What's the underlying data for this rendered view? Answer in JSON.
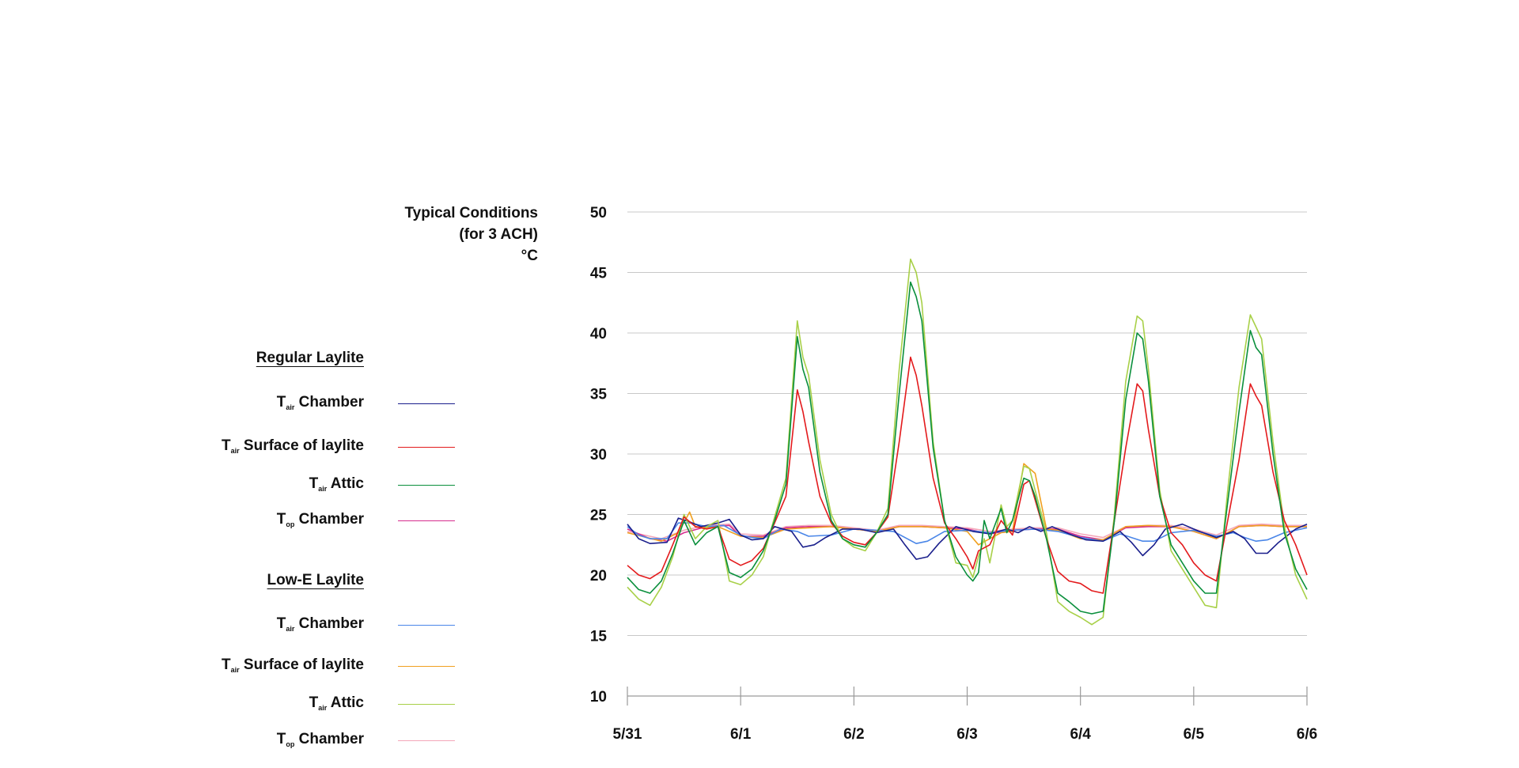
{
  "chart_data": {
    "type": "line",
    "title": "Typical Conditions",
    "subtitle": "(for 3 ACH)",
    "ylabel": "°C",
    "ylim": [
      10,
      50
    ],
    "yticks": [
      10,
      15,
      20,
      25,
      30,
      35,
      40,
      45,
      50
    ],
    "xlim": [
      0,
      6
    ],
    "xticks": [
      {
        "label": "5/31",
        "value": 0
      },
      {
        "label": "6/1",
        "value": 1
      },
      {
        "label": "6/2",
        "value": 2
      },
      {
        "label": "6/3",
        "value": 3
      },
      {
        "label": "6/4",
        "value": 4
      },
      {
        "label": "6/5",
        "value": 5
      },
      {
        "label": "6/6",
        "value": 6
      }
    ],
    "grid": true,
    "legend_placement": "left",
    "groups": [
      {
        "title": "Regular Laylite",
        "series": [
          {
            "name": "Tair Chamber",
            "main": "T",
            "sub": "air",
            "rest": " Chamber",
            "color": "#1a1f8c",
            "x": [
              0,
              0.1,
              0.2,
              0.35,
              0.45,
              0.55,
              0.65,
              0.8,
              0.9,
              1.0,
              1.1,
              1.2,
              1.3,
              1.45,
              1.55,
              1.65,
              1.75,
              1.9,
              2.05,
              2.2,
              2.35,
              2.45,
              2.55,
              2.65,
              2.75,
              2.9,
              3.05,
              3.2,
              3.35,
              3.45,
              3.55,
              3.65,
              3.75,
              3.9,
              4.05,
              4.2,
              4.35,
              4.45,
              4.55,
              4.65,
              4.75,
              4.9,
              5.05,
              5.2,
              5.35,
              5.45,
              5.55,
              5.65,
              5.75,
              5.9,
              6.0
            ],
            "y": [
              24.2,
              23.0,
              22.6,
              22.7,
              24.7,
              24.4,
              24.0,
              24.3,
              24.6,
              23.3,
              22.9,
              23.0,
              24.0,
              23.6,
              22.3,
              22.5,
              23.1,
              23.8,
              23.8,
              23.5,
              23.8,
              22.5,
              21.3,
              21.5,
              22.6,
              24.0,
              23.6,
              23.4,
              23.8,
              23.5,
              24.0,
              23.6,
              24.0,
              23.4,
              22.9,
              22.8,
              23.6,
              22.7,
              21.6,
              22.5,
              23.8,
              24.2,
              23.6,
              23.1,
              23.6,
              23.0,
              21.8,
              21.8,
              22.7,
              23.8,
              24.2
            ]
          },
          {
            "name": "Tair Surface of laylite",
            "main": "T",
            "sub": "air",
            "rest": " Surface of laylite",
            "color": "#e31a1c",
            "x": [
              0,
              0.1,
              0.2,
              0.3,
              0.4,
              0.5,
              0.6,
              0.7,
              0.8,
              0.9,
              1.0,
              1.1,
              1.2,
              1.3,
              1.4,
              1.5,
              1.55,
              1.6,
              1.7,
              1.8,
              1.9,
              2.0,
              2.1,
              2.2,
              2.3,
              2.4,
              2.5,
              2.55,
              2.6,
              2.7,
              2.8,
              2.9,
              3.0,
              3.05,
              3.1,
              3.2,
              3.3,
              3.4,
              3.5,
              3.55,
              3.6,
              3.7,
              3.8,
              3.9,
              4.0,
              4.1,
              4.2,
              4.3,
              4.4,
              4.5,
              4.55,
              4.6,
              4.7,
              4.8,
              4.9,
              5.0,
              5.1,
              5.2,
              5.3,
              5.4,
              5.5,
              5.55,
              5.6,
              5.7,
              5.8,
              5.9,
              6.0
            ],
            "y": [
              20.8,
              20.0,
              19.7,
              20.3,
              22.5,
              24.8,
              24.0,
              23.8,
              24.0,
              21.3,
              20.8,
              21.2,
              22.2,
              24.3,
              26.5,
              35.3,
              33.5,
              31.0,
              26.5,
              24.3,
              23.2,
              22.7,
              22.5,
              23.5,
              24.8,
              31.0,
              38.0,
              36.5,
              34.0,
              28.0,
              24.3,
              23.0,
              21.5,
              20.5,
              22.0,
              22.5,
              24.5,
              23.3,
              27.5,
              27.8,
              26.2,
              23.0,
              20.3,
              19.5,
              19.3,
              18.7,
              18.5,
              24.5,
              30.5,
              35.8,
              35.2,
              32.0,
              26.5,
              23.5,
              22.5,
              21.0,
              20.0,
              19.5,
              24.5,
              29.5,
              35.8,
              34.8,
              34.0,
              28.5,
              24.5,
              22.5,
              20.0
            ]
          },
          {
            "name": "Tair Attic",
            "main": "T",
            "sub": "air",
            "rest": " Attic",
            "color": "#0a8f3c",
            "x": [
              0,
              0.1,
              0.2,
              0.3,
              0.4,
              0.5,
              0.6,
              0.7,
              0.8,
              0.9,
              1.0,
              1.1,
              1.2,
              1.3,
              1.4,
              1.5,
              1.55,
              1.6,
              1.7,
              1.8,
              1.9,
              2.0,
              2.1,
              2.2,
              2.3,
              2.4,
              2.5,
              2.55,
              2.6,
              2.7,
              2.8,
              2.9,
              3.0,
              3.05,
              3.1,
              3.15,
              3.2,
              3.3,
              3.35,
              3.4,
              3.5,
              3.55,
              3.6,
              3.7,
              3.8,
              3.9,
              4.0,
              4.1,
              4.2,
              4.3,
              4.4,
              4.5,
              4.55,
              4.6,
              4.7,
              4.8,
              4.9,
              5.0,
              5.1,
              5.2,
              5.3,
              5.4,
              5.5,
              5.55,
              5.6,
              5.7,
              5.8,
              5.9,
              6.0
            ],
            "y": [
              19.8,
              18.8,
              18.5,
              19.5,
              21.8,
              24.5,
              22.5,
              23.5,
              24.0,
              20.2,
              19.8,
              20.5,
              22.0,
              24.5,
              27.5,
              39.7,
              37.0,
              35.5,
              28.5,
              24.5,
              23.0,
              22.5,
              22.3,
              23.5,
              25.0,
              35.0,
              44.2,
              43.0,
              41.0,
              30.5,
              24.5,
              21.5,
              20.0,
              19.5,
              20.2,
              24.5,
              23.0,
              25.5,
              23.5,
              24.5,
              28.0,
              27.8,
              26.5,
              23.0,
              18.5,
              17.8,
              17.0,
              16.8,
              17.0,
              24.5,
              34.5,
              40.0,
              39.5,
              36.0,
              26.5,
              22.5,
              21.0,
              19.5,
              18.5,
              18.5,
              26.0,
              33.5,
              40.2,
              38.8,
              38.2,
              30.0,
              23.5,
              20.5,
              18.8
            ]
          },
          {
            "name": "Top Chamber",
            "main": "T",
            "sub": "op",
            "rest": " Chamber",
            "color": "#d62d8e",
            "x": [
              0,
              0.2,
              0.35,
              0.5,
              0.7,
              0.9,
              1.0,
              1.2,
              1.4,
              1.6,
              1.8,
              2.0,
              2.2,
              2.4,
              2.6,
              2.8,
              3.0,
              3.2,
              3.4,
              3.6,
              3.8,
              4.0,
              4.2,
              4.4,
              4.6,
              4.8,
              5.0,
              5.2,
              5.4,
              5.6,
              5.8,
              6.0
            ],
            "y": [
              23.8,
              23.0,
              22.8,
              23.5,
              24.0,
              24.1,
              23.2,
              23.2,
              23.9,
              24.0,
              24.0,
              23.8,
              23.6,
              24.0,
              24.0,
              23.9,
              23.8,
              23.4,
              23.7,
              23.8,
              23.8,
              23.2,
              22.9,
              23.9,
              24.0,
              24.0,
              23.6,
              23.0,
              24.0,
              24.1,
              24.0,
              24.0
            ]
          }
        ]
      },
      {
        "title": "Low-E Laylite",
        "series": [
          {
            "name": "Tair Chamber",
            "main": "T",
            "sub": "air",
            "rest": " Chamber",
            "color": "#4a86e8",
            "x": [
              0,
              0.1,
              0.2,
              0.35,
              0.45,
              0.55,
              0.7,
              0.85,
              1.0,
              1.1,
              1.2,
              1.35,
              1.5,
              1.6,
              1.8,
              2.0,
              2.2,
              2.35,
              2.45,
              2.55,
              2.65,
              2.8,
              3.0,
              3.2,
              3.4,
              3.6,
              3.8,
              4.0,
              4.2,
              4.35,
              4.45,
              4.55,
              4.65,
              4.8,
              5.0,
              5.2,
              5.35,
              5.45,
              5.55,
              5.65,
              5.8,
              6.0
            ],
            "y": [
              24.0,
              23.3,
              23.0,
              23.0,
              24.3,
              24.3,
              24.0,
              24.1,
              23.3,
              23.1,
              23.0,
              23.8,
              23.6,
              23.2,
              23.3,
              23.8,
              23.7,
              23.6,
              23.1,
              22.6,
              22.8,
              23.6,
              23.7,
              23.5,
              23.7,
              23.8,
              23.6,
              23.1,
              22.8,
              23.4,
              23.1,
              22.8,
              22.8,
              23.5,
              23.7,
              23.2,
              23.5,
              23.1,
              22.8,
              22.9,
              23.5,
              23.9
            ]
          },
          {
            "name": "Tair Surface of laylite",
            "main": "T",
            "sub": "air",
            "rest": " Surface of laylite",
            "color": "#f0a020",
            "x": [
              0,
              0.3,
              0.45,
              0.55,
              0.6,
              0.7,
              0.8,
              1.0,
              1.2,
              1.4,
              1.6,
              1.8,
              2.0,
              2.2,
              2.4,
              2.6,
              2.8,
              3.0,
              3.1,
              3.2,
              3.3,
              3.4,
              3.5,
              3.6,
              3.7,
              3.8,
              4.0,
              4.2,
              4.4,
              4.6,
              4.8,
              5.0,
              5.2,
              5.4,
              5.6,
              5.8,
              6.0
            ],
            "y": [
              23.5,
              22.8,
              23.5,
              25.2,
              24.0,
              23.9,
              24.0,
              23.2,
              23.1,
              23.8,
              23.9,
              24.0,
              23.8,
              23.6,
              24.0,
              24.0,
              23.9,
              23.6,
              22.5,
              23.0,
              23.5,
              23.6,
              29.2,
              28.4,
              23.8,
              23.7,
              23.0,
              22.9,
              24.0,
              24.1,
              24.0,
              23.6,
              23.0,
              24.0,
              24.1,
              24.0,
              24.0
            ]
          },
          {
            "name": "Tair Attic",
            "main": "T",
            "sub": "air",
            "rest": " Attic",
            "color": "#a8d048",
            "x": [
              0,
              0.1,
              0.2,
              0.3,
              0.4,
              0.5,
              0.6,
              0.7,
              0.8,
              0.9,
              1.0,
              1.1,
              1.2,
              1.3,
              1.4,
              1.5,
              1.55,
              1.6,
              1.7,
              1.8,
              1.9,
              2.0,
              2.1,
              2.2,
              2.3,
              2.4,
              2.5,
              2.55,
              2.6,
              2.7,
              2.8,
              2.9,
              3.0,
              3.05,
              3.1,
              3.15,
              3.2,
              3.3,
              3.35,
              3.4,
              3.5,
              3.55,
              3.6,
              3.7,
              3.8,
              3.9,
              4.0,
              4.1,
              4.2,
              4.3,
              4.4,
              4.5,
              4.55,
              4.6,
              4.7,
              4.8,
              4.9,
              5.0,
              5.1,
              5.2,
              5.3,
              5.4,
              5.5,
              5.55,
              5.6,
              5.7,
              5.8,
              5.9,
              6.0
            ],
            "y": [
              19.0,
              18.0,
              17.5,
              19.0,
              21.5,
              25.0,
              23.0,
              24.0,
              24.5,
              19.5,
              19.2,
              20.0,
              21.5,
              24.8,
              28.0,
              41.0,
              38.0,
              36.5,
              29.5,
              25.0,
              23.0,
              22.3,
              22.0,
              23.5,
              25.5,
              37.0,
              46.1,
              45.0,
              42.5,
              31.0,
              24.5,
              21.0,
              20.8,
              19.8,
              21.5,
              23.0,
              21.0,
              25.8,
              24.0,
              24.5,
              29.0,
              28.8,
              27.0,
              23.5,
              17.8,
              17.0,
              16.5,
              15.9,
              16.5,
              25.0,
              36.0,
              41.4,
              41.0,
              37.0,
              27.0,
              22.0,
              20.5,
              19.0,
              17.5,
              17.3,
              27.0,
              35.5,
              41.5,
              40.5,
              39.5,
              31.0,
              24.0,
              20.0,
              18.0
            ]
          },
          {
            "name": "Top Chamber",
            "main": "T",
            "sub": "op",
            "rest": " Chamber",
            "color": "#f4a7b9",
            "x": [
              0,
              0.3,
              0.5,
              0.7,
              0.9,
              1.0,
              1.2,
              1.4,
              1.6,
              1.8,
              2.0,
              2.2,
              2.4,
              2.6,
              2.8,
              3.0,
              3.2,
              3.4,
              3.6,
              3.8,
              4.0,
              4.2,
              4.4,
              4.6,
              4.8,
              5.0,
              5.2,
              5.4,
              5.6,
              5.8,
              6.0
            ],
            "y": [
              23.6,
              23.0,
              23.7,
              24.1,
              24.2,
              23.4,
              23.3,
              24.0,
              24.1,
              24.1,
              23.9,
              23.7,
              24.1,
              24.1,
              24.0,
              23.9,
              23.6,
              23.8,
              23.9,
              23.9,
              23.4,
              23.1,
              24.0,
              24.1,
              24.1,
              23.8,
              23.3,
              24.1,
              24.2,
              24.1,
              24.1
            ]
          }
        ]
      }
    ]
  }
}
